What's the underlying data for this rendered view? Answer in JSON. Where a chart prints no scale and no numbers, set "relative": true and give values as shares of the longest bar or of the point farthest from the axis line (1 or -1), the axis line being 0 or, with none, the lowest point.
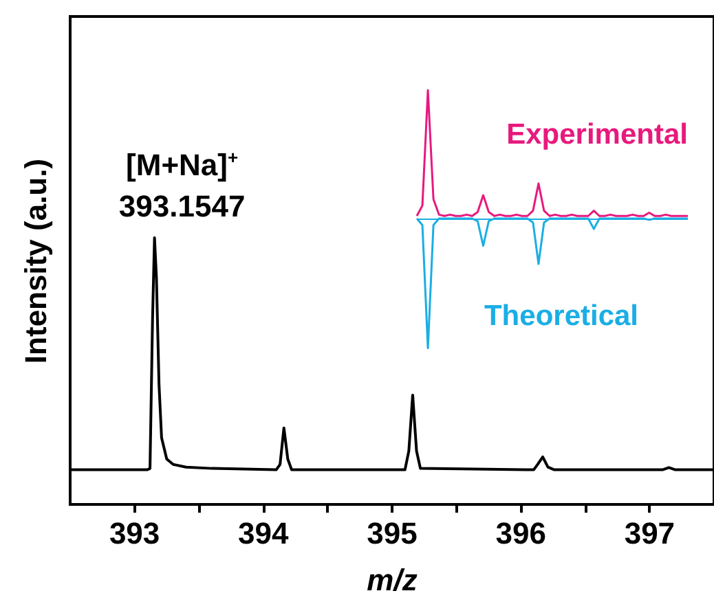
{
  "chart_data": [
    {
      "type": "line",
      "xlabel": "m/z",
      "ylabel": "Intensity (a.u.)",
      "relative": true,
      "marker": "none",
      "xlim": [
        392.5,
        397.5
      ],
      "xticks": [
        393,
        {
          "value": 393.5,
          "label": null
        },
        394,
        {
          "value": 394.5,
          "label": null
        },
        395,
        {
          "value": 395.5,
          "label": null
        },
        396,
        {
          "value": 396.5,
          "label": null
        },
        397
      ],
      "annotations": [
        {
          "text": "[M+Na]$^{+}$",
          "x": 393.155,
          "y": 1.0
        },
        {
          "text": "393.1547",
          "x": 393.155,
          "y": 1.0
        }
      ],
      "series": [
        {
          "color": "#000000",
          "x": [
            392.5,
            393.1,
            393.12,
            393.14,
            393.155,
            393.17,
            393.19,
            393.21,
            393.25,
            393.3,
            393.4,
            393.6,
            394.1,
            394.13,
            394.16,
            394.19,
            394.22,
            395.1,
            395.13,
            395.16,
            395.19,
            395.22,
            396.1,
            396.13,
            396.17,
            396.21,
            396.26,
            397.1,
            397.15,
            397.2,
            397.5
          ],
          "values": [
            0.13,
            0.13,
            0.135,
            0.7,
            1.0,
            0.85,
            0.45,
            0.25,
            0.17,
            0.15,
            0.14,
            0.135,
            0.13,
            0.15,
            0.287,
            0.17,
            0.13,
            0.13,
            0.2,
            0.41,
            0.2,
            0.135,
            0.13,
            0.15,
            0.178,
            0.14,
            0.13,
            0.13,
            0.138,
            0.13,
            0.13
          ]
        }
      ]
    },
    {
      "type": "line",
      "relative": true,
      "marker": "none",
      "ref_lines": [
        {
          "axis": "y",
          "value": 0,
          "color": "#1aaee5"
        }
      ],
      "categories": [
        null,
        null,
        null,
        null,
        null,
        null,
        null,
        null,
        null,
        null,
        null,
        null,
        null,
        null,
        null,
        null,
        null,
        null,
        null,
        null,
        null,
        null,
        null,
        null,
        null,
        null,
        null,
        null,
        null,
        null,
        null,
        null,
        null,
        null,
        null,
        null,
        null,
        null,
        null,
        null,
        null,
        null,
        null,
        null,
        null,
        null,
        null,
        null,
        null,
        null
      ],
      "series": [
        {
          "name": "Experimental",
          "color": "#e8197d",
          "values": [
            0.02,
            0.1,
            0.99,
            0.15,
            0.03,
            0.02,
            0.03,
            0.02,
            0.02,
            0.03,
            0.02,
            0.05,
            0.18,
            0.05,
            0.02,
            0.03,
            0.02,
            0.02,
            0.03,
            0.02,
            0.02,
            0.06,
            0.27,
            0.06,
            0.02,
            0.03,
            0.02,
            0.02,
            0.03,
            0.02,
            0.02,
            0.02,
            0.06,
            0.02,
            0.02,
            0.03,
            0.02,
            0.02,
            0.02,
            0.03,
            0.02,
            0.02,
            0.045,
            0.02,
            0.02,
            0.03,
            0.02,
            0.02,
            0.02,
            0.02
          ]
        },
        {
          "name": "Theoretical",
          "color": "#1aaee5",
          "values": [
            0,
            -0.05,
            -1,
            -0.05,
            0,
            0,
            0,
            0,
            0,
            0,
            0,
            -0.02,
            -0.21,
            -0.02,
            0,
            0,
            0,
            0,
            0,
            0,
            0,
            -0.03,
            -0.35,
            -0.03,
            0,
            0,
            0,
            0,
            0,
            0,
            0,
            0,
            -0.08,
            0,
            0,
            0,
            0,
            0,
            0,
            0,
            0,
            0,
            -0.01,
            0,
            0,
            0,
            0,
            0,
            0,
            0
          ]
        }
      ]
    }
  ]
}
